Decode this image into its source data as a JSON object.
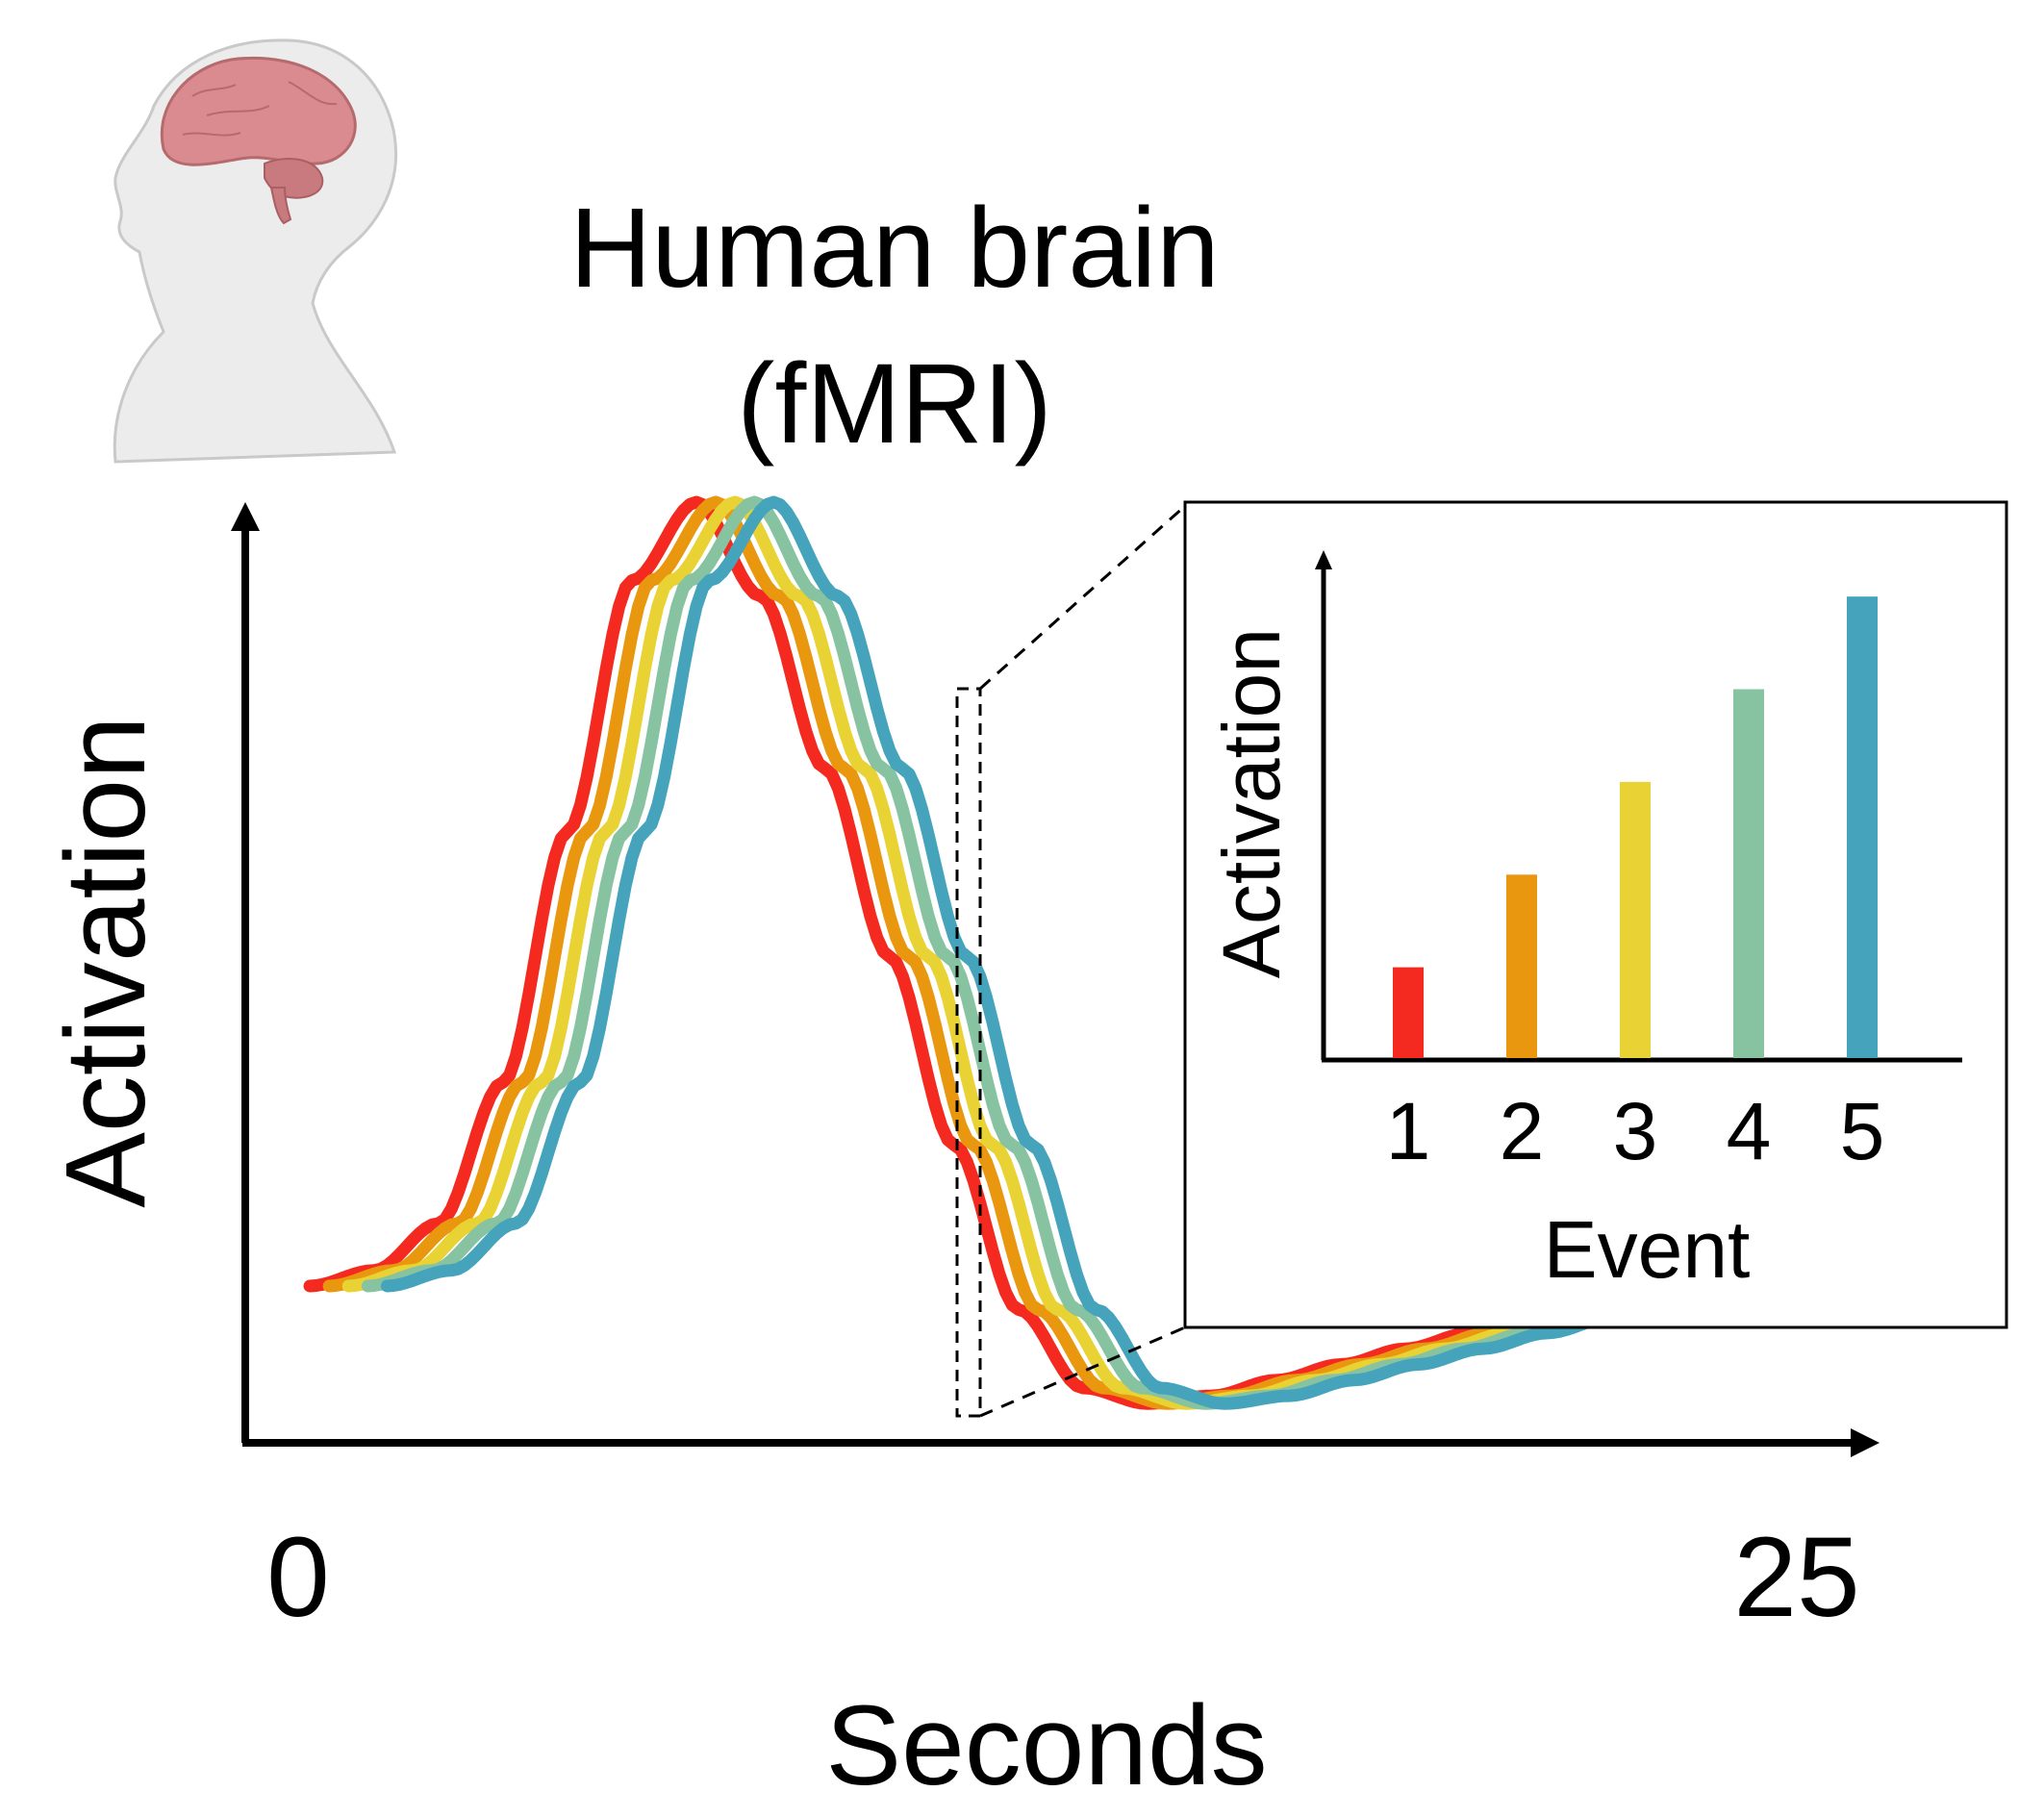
{
  "title_lines": [
    "Human brain",
    "(fMRI)"
  ],
  "colors": {
    "event_1": "#f42a20",
    "event_2": "#e9970f",
    "event_3": "#e9d233",
    "event_4": "#87c3a1",
    "event_5": "#45a4bc",
    "axis": "#000000"
  },
  "illustration": {
    "icon": "human-head-brain-icon"
  },
  "chart_data": [
    {
      "type": "line",
      "title": "Human brain (fMRI)",
      "xlabel": "Seconds",
      "ylabel": "Activation",
      "xticks": [
        "0",
        "25"
      ],
      "xlim": [
        0,
        25
      ],
      "ylim": [
        -0.2,
        1.0
      ],
      "grid": false,
      "legend": "none",
      "series": [
        {
          "event": "1",
          "onset": 1.0
        },
        {
          "event": "2",
          "onset": 1.3
        },
        {
          "event": "3",
          "onset": 1.6
        },
        {
          "event": "4",
          "onset": 1.9
        },
        {
          "event": "5",
          "onset": 2.2
        }
      ],
      "curve_shape": {
        "x": [
          0,
          1,
          2,
          3,
          4,
          5,
          6,
          7,
          8,
          9,
          10,
          11,
          12,
          13,
          14,
          15,
          16,
          17,
          18,
          19,
          20,
          21,
          22,
          23,
          24
        ],
        "y": [
          0.0,
          0.02,
          0.08,
          0.26,
          0.58,
          0.9,
          1.0,
          0.88,
          0.66,
          0.42,
          0.18,
          -0.03,
          -0.13,
          -0.15,
          -0.14,
          -0.12,
          -0.1,
          -0.08,
          -0.06,
          -0.04,
          -0.03,
          -0.02,
          -0.01,
          0.0,
          0.0
        ]
      },
      "highlight_window": "~11 s"
    },
    {
      "type": "bar",
      "xlabel": "Event",
      "ylabel": "Activation",
      "categories": [
        "1",
        "2",
        "3",
        "4",
        "5"
      ],
      "values": [
        0.2,
        0.4,
        0.6,
        0.8,
        1.0
      ],
      "ylim": [
        0,
        1.1
      ],
      "grid": false
    }
  ]
}
